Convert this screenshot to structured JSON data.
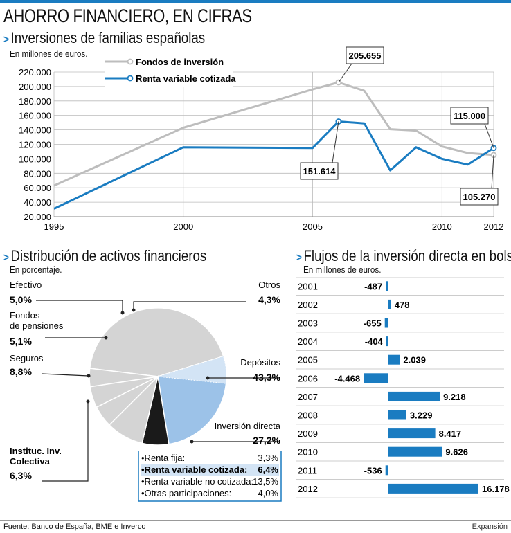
{
  "header": {
    "title": "AHORRO FINANCIERO, EN CIFRAS"
  },
  "colors": {
    "accent": "#1a7cc1",
    "fondos": "#bdbdbd",
    "renta": "#1a7cc1",
    "pie_depositos": "#d4d4d4",
    "pie_inversion": "#9cc2e8",
    "pie_inv_small": "#d3e4f5",
    "pie_iic": "#1a1a1a",
    "bar": "#1a7cc1"
  },
  "line_section": {
    "title": "Inversiones de familias españolas",
    "units": "En millones de euros."
  },
  "pie_section": {
    "title": "Distribución de activos financieros",
    "units": "En porcentaje."
  },
  "bar_section": {
    "title": "Flujos de la inversión directa en bolsa",
    "units": "En millones de euros."
  },
  "footer": {
    "source_label": "Fuente:",
    "source": "Banco de España, BME e Inverco",
    "brand": "Expansión"
  },
  "chart_data": [
    {
      "type": "line",
      "title": "Inversiones de familias españolas",
      "ylabel": "En millones de euros.",
      "ylim": [
        20000,
        220000
      ],
      "yticks": [
        20000,
        40000,
        60000,
        80000,
        100000,
        120000,
        140000,
        160000,
        180000,
        200000,
        220000
      ],
      "ytick_labels": [
        "20.000",
        "40.000",
        "60.000",
        "80.000",
        "100.000",
        "120.000",
        "140.000",
        "160.000",
        "180.000",
        "200.000",
        "220.000"
      ],
      "xlim": [
        1995,
        2012
      ],
      "xticks": [
        1995,
        2000,
        2005,
        2010,
        2012
      ],
      "xtick_labels": [
        "1995",
        "2000",
        "2005",
        "2010",
        "2012"
      ],
      "series": [
        {
          "name": "Fondos de inversión",
          "x": [
            1995,
            2000,
            2005,
            2006,
            2007,
            2008,
            2009,
            2010,
            2011,
            2012
          ],
          "values": [
            63000,
            143000,
            196000,
            205655,
            194000,
            141000,
            139000,
            117000,
            108000,
            105270
          ]
        },
        {
          "name": "Renta variable cotizada",
          "x": [
            1995,
            2000,
            2005,
            2006,
            2007,
            2008,
            2009,
            2010,
            2011,
            2012
          ],
          "values": [
            31000,
            116000,
            115000,
            151614,
            149000,
            84000,
            116000,
            100000,
            92000,
            115000
          ]
        }
      ],
      "annotations": [
        {
          "label": "205.655",
          "x": 2006,
          "y": 205655
        },
        {
          "label": "151.614",
          "x": 2006,
          "y": 151614
        },
        {
          "label": "115.000",
          "x": 2012,
          "y": 115000
        },
        {
          "label": "105.270",
          "x": 2012,
          "y": 105270
        }
      ]
    },
    {
      "type": "pie",
      "title": "Distribución de activos financieros",
      "unit": "En porcentaje.",
      "slices": [
        {
          "name": "Depósitos",
          "value": 43.3,
          "label": "43,3%"
        },
        {
          "name": "Inversión directa",
          "value": 27.2,
          "label": "27,2%"
        },
        {
          "name": "Instituc. Inv. Colectiva",
          "value": 6.3,
          "label": "6,3%"
        },
        {
          "name": "Seguros",
          "value": 8.8,
          "label": "8,8%"
        },
        {
          "name": "Fondos de pensiones",
          "value": 5.1,
          "label": "5,1%"
        },
        {
          "name": "Efectivo",
          "value": 5.0,
          "label": "5,0%"
        },
        {
          "name": "Otros",
          "value": 4.3,
          "label": "4,3%"
        }
      ],
      "breakdown": [
        {
          "name": "•Renta fija:",
          "value": 3.3,
          "label": "3,3%"
        },
        {
          "name": "•Renta variable cotizada:",
          "value": 6.4,
          "label": "6,4%",
          "highlight": true
        },
        {
          "name": "•Renta variable no cotizada:",
          "value": 13.5,
          "label": "13,5%"
        },
        {
          "name": "•Otras participaciones:",
          "value": 4.0,
          "label": "4,0%"
        }
      ]
    },
    {
      "type": "bar",
      "orientation": "horizontal",
      "title": "Flujos de la inversión directa en bolsa",
      "unit": "En millones de euros.",
      "categories": [
        "2001",
        "2002",
        "2003",
        "2004",
        "2005",
        "2006",
        "2007",
        "2008",
        "2009",
        "2010",
        "2011",
        "2012"
      ],
      "values": [
        -487,
        478,
        -655,
        -404,
        2039,
        -4468,
        9218,
        3229,
        8417,
        9626,
        -536,
        16178
      ],
      "value_labels": [
        "-487",
        "478",
        "-655",
        "-404",
        "2.039",
        "-4.468",
        "9.218",
        "3.229",
        "8.417",
        "9.626",
        "-536",
        "16.178"
      ]
    }
  ]
}
